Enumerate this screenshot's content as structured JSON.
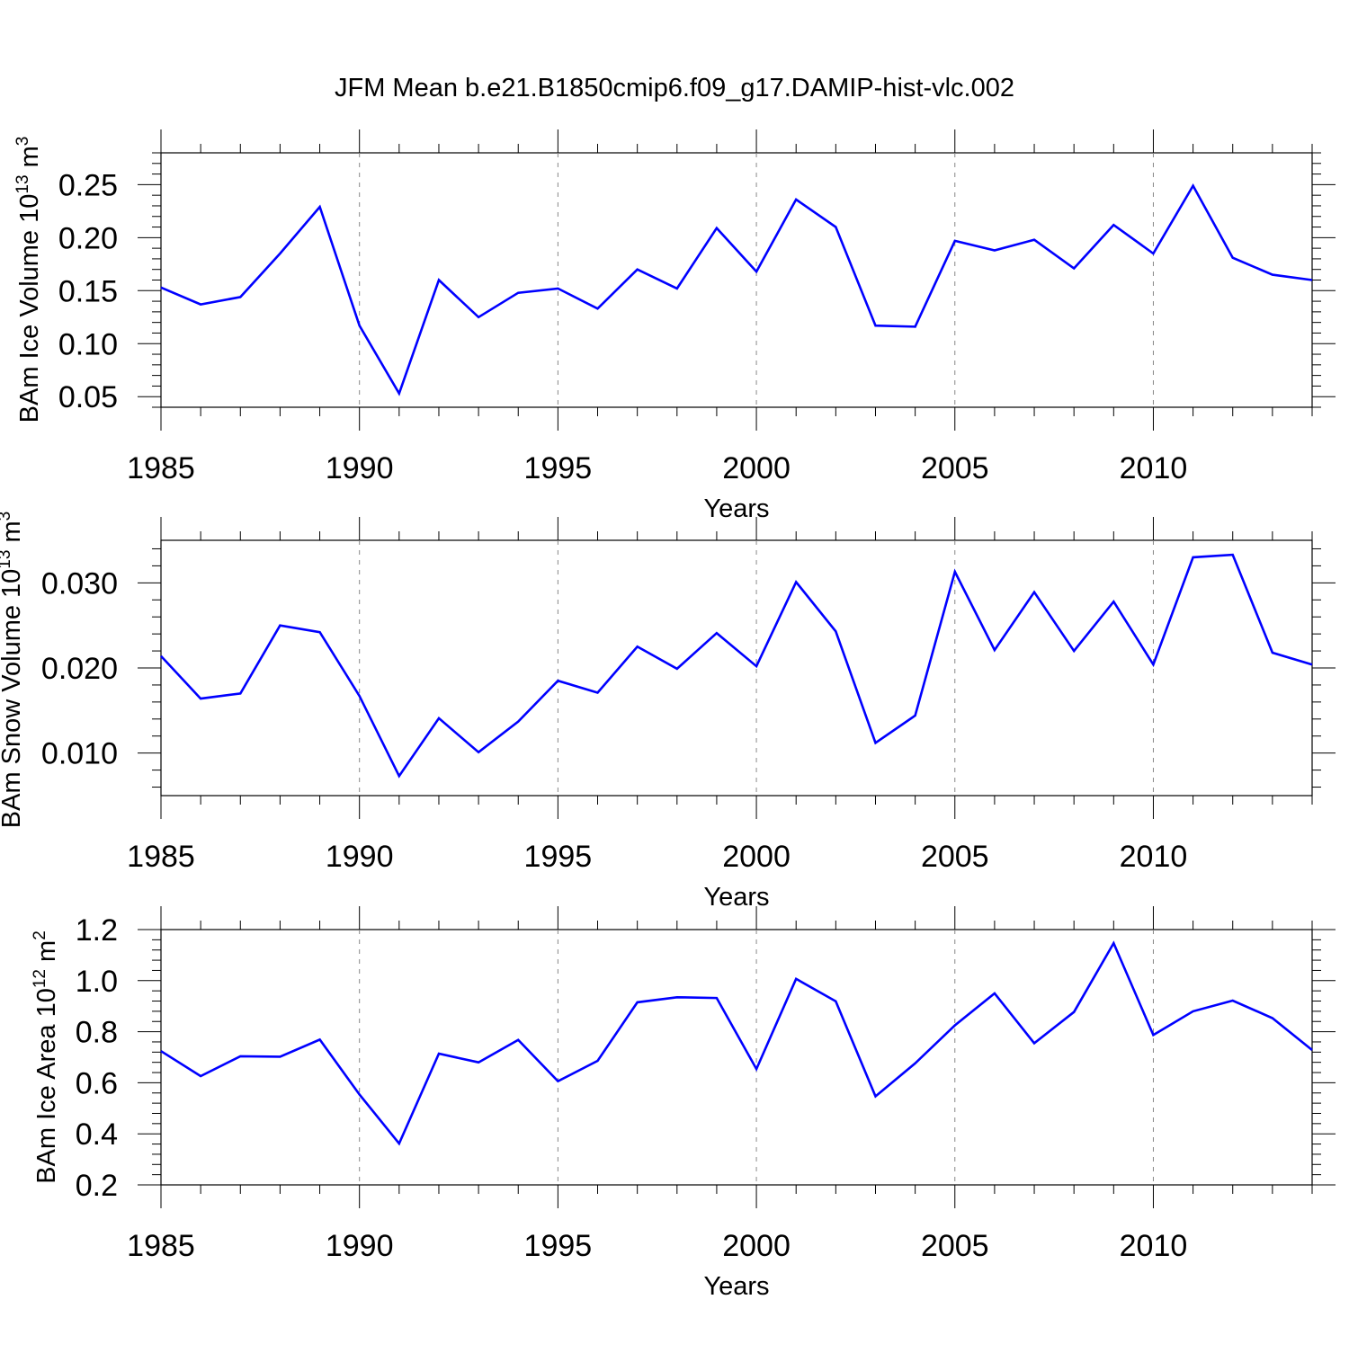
{
  "chart_data": [
    {
      "type": "line",
      "title": "JFM Mean b.e21.B1850cmip6.f09_g17.DAMIP-hist-vlc.002",
      "xlabel": "Years",
      "ylabel_main": "BAm Ice Volume 10",
      "ylabel_exp": "13",
      "ylabel_unit": "m",
      "ylabel_unit_exp": "3",
      "xlim": [
        1985,
        2014
      ],
      "ylim": [
        0.04,
        0.28
      ],
      "xticks": [
        "1985",
        "1990",
        "1995",
        "2000",
        "2005",
        "2010"
      ],
      "xtick_values": [
        1985,
        1990,
        1995,
        2000,
        2005,
        2010
      ],
      "yticks": [
        "0.05",
        "0.10",
        "0.15",
        "0.20",
        "0.25"
      ],
      "ytick_values": [
        0.05,
        0.1,
        0.15,
        0.2,
        0.25
      ],
      "line_color": "#0000ff",
      "series": [
        {
          "name": "BAm Ice Volume",
          "x": [
            1985,
            1986,
            1987,
            1988,
            1989,
            1990,
            1991,
            1992,
            1993,
            1994,
            1995,
            1996,
            1997,
            1998,
            1999,
            2000,
            2001,
            2002,
            2003,
            2004,
            2005,
            2006,
            2007,
            2008,
            2009,
            2010,
            2011,
            2012,
            2013,
            2014
          ],
          "values": [
            0.153,
            0.137,
            0.144,
            0.185,
            0.229,
            0.117,
            0.053,
            0.16,
            0.125,
            0.148,
            0.152,
            0.133,
            0.17,
            0.152,
            0.209,
            0.168,
            0.236,
            0.21,
            0.117,
            0.116,
            0.197,
            0.188,
            0.198,
            0.171,
            0.212,
            0.185,
            0.249,
            0.181,
            0.165,
            0.16
          ]
        }
      ]
    },
    {
      "type": "line",
      "xlabel": "Years",
      "ylabel_main": "BAm Snow Volume 10",
      "ylabel_exp": "13",
      "ylabel_unit": "m",
      "ylabel_unit_exp": "3",
      "xlim": [
        1985,
        2014
      ],
      "ylim": [
        0.005,
        0.035
      ],
      "xticks": [
        "1985",
        "1990",
        "1995",
        "2000",
        "2005",
        "2010"
      ],
      "xtick_values": [
        1985,
        1990,
        1995,
        2000,
        2005,
        2010
      ],
      "yticks": [
        "0.010",
        "0.020",
        "0.030"
      ],
      "ytick_values": [
        0.01,
        0.02,
        0.03
      ],
      "line_color": "#0000ff",
      "series": [
        {
          "name": "BAm Snow Volume",
          "x": [
            1985,
            1986,
            1987,
            1988,
            1989,
            1990,
            1991,
            1992,
            1993,
            1994,
            1995,
            1996,
            1997,
            1998,
            1999,
            2000,
            2001,
            2002,
            2003,
            2004,
            2005,
            2006,
            2007,
            2008,
            2009,
            2010,
            2011,
            2012,
            2013,
            2014
          ],
          "values": [
            0.0214,
            0.0164,
            0.017,
            0.025,
            0.0242,
            0.0167,
            0.0073,
            0.0141,
            0.0101,
            0.0137,
            0.0185,
            0.0171,
            0.0225,
            0.0199,
            0.0241,
            0.0202,
            0.0301,
            0.0243,
            0.0112,
            0.0144,
            0.0313,
            0.0221,
            0.0289,
            0.022,
            0.0278,
            0.0204,
            0.033,
            0.0333,
            0.0218,
            0.0204
          ]
        }
      ]
    },
    {
      "type": "line",
      "xlabel": "Years",
      "ylabel_main": "BAm Ice Area 10",
      "ylabel_exp": "12",
      "ylabel_unit": "m",
      "ylabel_unit_exp": "2",
      "xlim": [
        1985,
        2014
      ],
      "ylim": [
        0.2,
        1.2
      ],
      "xticks": [
        "1985",
        "1990",
        "1995",
        "2000",
        "2005",
        "2010"
      ],
      "xtick_values": [
        1985,
        1990,
        1995,
        2000,
        2005,
        2010
      ],
      "yticks": [
        "0.2",
        "0.4",
        "0.6",
        "0.8",
        "1.0",
        "1.2"
      ],
      "ytick_values": [
        0.2,
        0.4,
        0.6,
        0.8,
        1.0,
        1.2
      ],
      "line_color": "#0000ff",
      "series": [
        {
          "name": "BAm Ice Area",
          "x": [
            1985,
            1986,
            1987,
            1988,
            1989,
            1990,
            1991,
            1992,
            1993,
            1994,
            1995,
            1996,
            1997,
            1998,
            1999,
            2000,
            2001,
            2002,
            2003,
            2004,
            2005,
            2006,
            2007,
            2008,
            2009,
            2010,
            2011,
            2012,
            2013,
            2014
          ],
          "values": [
            0.724,
            0.626,
            0.704,
            0.702,
            0.769,
            0.554,
            0.362,
            0.714,
            0.68,
            0.768,
            0.606,
            0.686,
            0.915,
            0.935,
            0.932,
            0.654,
            1.007,
            0.919,
            0.547,
            0.676,
            0.825,
            0.95,
            0.755,
            0.877,
            1.147,
            0.787,
            0.88,
            0.922,
            0.853,
            0.728
          ]
        }
      ]
    }
  ]
}
